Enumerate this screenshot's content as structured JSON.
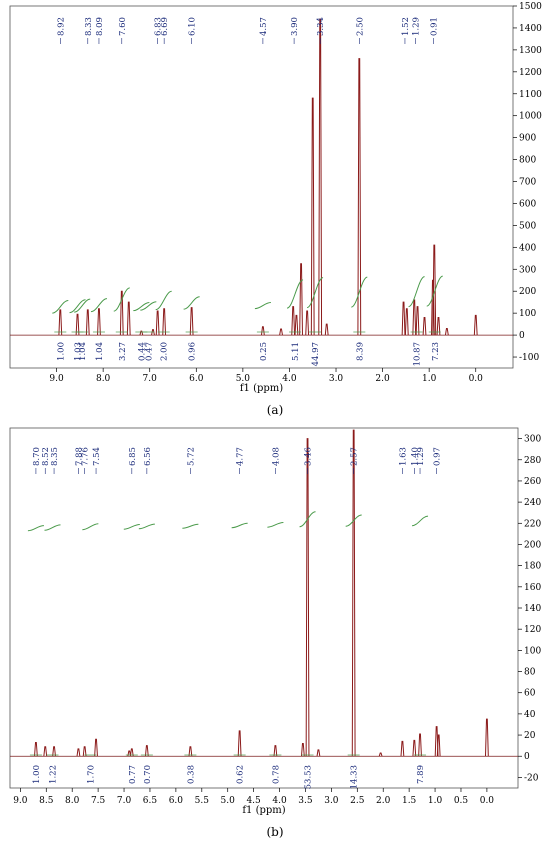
{
  "chart_data": [
    {
      "type": "line",
      "panel": "(a)",
      "xlabel": "f1 (ppm)",
      "xlim": [
        10.0,
        -0.8
      ],
      "ylim": [
        -150,
        1500
      ],
      "x_ticks": [
        "9.0",
        "8.0",
        "7.0",
        "6.0",
        "5.0",
        "4.0",
        "3.0",
        "2.0",
        "1.0",
        "0.0"
      ],
      "y_ticks": [
        "-100",
        "0",
        "100",
        "200",
        "300",
        "400",
        "500",
        "600",
        "700",
        "800",
        "900",
        "1000",
        "1100",
        "1200",
        "1300",
        "1400",
        "1500"
      ],
      "peak_labels": [
        "8.92",
        "8.33",
        "8.09",
        "7.60",
        "6.83",
        "6.69",
        "6.10",
        "4.57",
        "3.90",
        "3.34",
        "2.50",
        "1.52",
        "1.29",
        "0.91"
      ],
      "integrals": [
        {
          "ppm": 8.92,
          "value": "1.00"
        },
        {
          "ppm": 8.55,
          "value": "1.03"
        },
        {
          "ppm": 8.45,
          "value": "1.04"
        },
        {
          "ppm": 8.09,
          "value": "1.04"
        },
        {
          "ppm": 7.6,
          "value": "3.27"
        },
        {
          "ppm": 7.18,
          "value": "0.44"
        },
        {
          "ppm": 7.03,
          "value": "0.47"
        },
        {
          "ppm": 6.7,
          "value": "2.00"
        },
        {
          "ppm": 6.1,
          "value": "0.96"
        },
        {
          "ppm": 4.57,
          "value": "0.25"
        },
        {
          "ppm": 3.88,
          "value": "5.11"
        },
        {
          "ppm": 3.45,
          "value": "44.97"
        },
        {
          "ppm": 2.5,
          "value": "8.39"
        },
        {
          "ppm": 1.27,
          "value": "10.87"
        },
        {
          "ppm": 0.88,
          "value": "7.23"
        }
      ],
      "peaks": [
        {
          "ppm": 8.92,
          "height": 115
        },
        {
          "ppm": 8.55,
          "height": 95
        },
        {
          "ppm": 8.33,
          "height": 115
        },
        {
          "ppm": 8.09,
          "height": 120
        },
        {
          "ppm": 7.6,
          "height": 200
        },
        {
          "ppm": 7.45,
          "height": 150
        },
        {
          "ppm": 7.18,
          "height": 18
        },
        {
          "ppm": 6.93,
          "height": 25
        },
        {
          "ppm": 6.83,
          "height": 110
        },
        {
          "ppm": 6.69,
          "height": 120
        },
        {
          "ppm": 6.1,
          "height": 125
        },
        {
          "ppm": 4.57,
          "height": 38
        },
        {
          "ppm": 4.18,
          "height": 28
        },
        {
          "ppm": 3.92,
          "height": 130
        },
        {
          "ppm": 3.85,
          "height": 90
        },
        {
          "ppm": 3.75,
          "height": 325
        },
        {
          "ppm": 3.62,
          "height": 110
        },
        {
          "ppm": 3.5,
          "height": 1080
        },
        {
          "ppm": 3.34,
          "height": 1440
        },
        {
          "ppm": 3.2,
          "height": 50
        },
        {
          "ppm": 2.5,
          "height": 1260
        },
        {
          "ppm": 1.55,
          "height": 150
        },
        {
          "ppm": 1.48,
          "height": 120
        },
        {
          "ppm": 1.32,
          "height": 160
        },
        {
          "ppm": 1.25,
          "height": 130
        },
        {
          "ppm": 1.1,
          "height": 80
        },
        {
          "ppm": 0.92,
          "height": 250
        },
        {
          "ppm": 0.89,
          "height": 410
        },
        {
          "ppm": 0.8,
          "height": 80
        },
        {
          "ppm": 0.62,
          "height": 30
        },
        {
          "ppm": 0.0,
          "height": 90
        }
      ]
    },
    {
      "type": "line",
      "panel": "(b)",
      "xlabel": "f1 (ppm)",
      "xlim": [
        9.2,
        -0.6
      ],
      "ylim": [
        -30,
        310
      ],
      "x_ticks": [
        "9.0",
        "8.5",
        "8.0",
        "7.5",
        "7.0",
        "6.5",
        "6.0",
        "5.5",
        "5.0",
        "4.5",
        "4.0",
        "3.5",
        "3.0",
        "2.5",
        "2.0",
        "1.5",
        "1.0",
        "0.5",
        "0.0"
      ],
      "y_ticks": [
        "-20",
        "0",
        "20",
        "40",
        "60",
        "80",
        "100",
        "120",
        "140",
        "160",
        "180",
        "200",
        "220",
        "240",
        "260",
        "280",
        "300"
      ],
      "peak_labels": [
        "8.70",
        "8.52",
        "8.35",
        "7.88",
        "7.76",
        "7.54",
        "6.85",
        "6.56",
        "5.72",
        "4.77",
        "4.08",
        "3.46",
        "2.57",
        "1.63",
        "1.40",
        "1.29",
        "0.97"
      ],
      "integrals": [
        {
          "ppm": 8.7,
          "value": "1.00"
        },
        {
          "ppm": 8.38,
          "value": "1.22"
        },
        {
          "ppm": 7.65,
          "value": "1.70"
        },
        {
          "ppm": 6.85,
          "value": "0.77"
        },
        {
          "ppm": 6.56,
          "value": "0.70"
        },
        {
          "ppm": 5.72,
          "value": "0.38"
        },
        {
          "ppm": 4.77,
          "value": "0.62"
        },
        {
          "ppm": 4.08,
          "value": "0.78"
        },
        {
          "ppm": 3.46,
          "value": "53.53"
        },
        {
          "ppm": 2.57,
          "value": "14.33"
        },
        {
          "ppm": 1.29,
          "value": "7.89"
        }
      ],
      "peaks": [
        {
          "ppm": 8.7,
          "height": 13
        },
        {
          "ppm": 8.52,
          "height": 9
        },
        {
          "ppm": 8.35,
          "height": 9
        },
        {
          "ppm": 7.88,
          "height": 7
        },
        {
          "ppm": 7.76,
          "height": 9
        },
        {
          "ppm": 7.54,
          "height": 16
        },
        {
          "ppm": 6.9,
          "height": 5
        },
        {
          "ppm": 6.85,
          "height": 7
        },
        {
          "ppm": 6.56,
          "height": 10
        },
        {
          "ppm": 5.72,
          "height": 9
        },
        {
          "ppm": 4.77,
          "height": 24
        },
        {
          "ppm": 4.08,
          "height": 10
        },
        {
          "ppm": 3.55,
          "height": 12
        },
        {
          "ppm": 3.46,
          "height": 300
        },
        {
          "ppm": 3.25,
          "height": 6
        },
        {
          "ppm": 2.57,
          "height": 308
        },
        {
          "ppm": 2.05,
          "height": 3
        },
        {
          "ppm": 1.63,
          "height": 14
        },
        {
          "ppm": 1.4,
          "height": 15
        },
        {
          "ppm": 1.29,
          "height": 21
        },
        {
          "ppm": 0.97,
          "height": 28
        },
        {
          "ppm": 0.93,
          "height": 20
        },
        {
          "ppm": 0.0,
          "height": 35
        }
      ]
    }
  ]
}
